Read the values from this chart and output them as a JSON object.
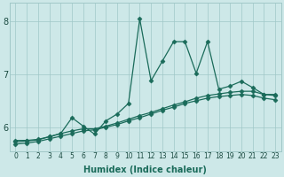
{
  "xlabel": "Humidex (Indice chaleur)",
  "xlim": [
    -0.5,
    23.5
  ],
  "ylim": [
    5.55,
    8.35
  ],
  "yticks": [
    6,
    7,
    8
  ],
  "xticks": [
    0,
    1,
    2,
    3,
    4,
    5,
    6,
    7,
    8,
    9,
    10,
    11,
    12,
    13,
    14,
    15,
    16,
    17,
    18,
    19,
    20,
    21,
    22,
    23
  ],
  "bg_color": "#cde8e8",
  "grid_color": "#a0c8c8",
  "line_color": "#1a6b5a",
  "line1": {
    "x": [
      0,
      1,
      2,
      3,
      4,
      5,
      6,
      7,
      8,
      9,
      10,
      11,
      12,
      13,
      14,
      15,
      16,
      17,
      18,
      19,
      20,
      21,
      22,
      23
    ],
    "y": [
      5.75,
      5.75,
      5.77,
      5.82,
      5.88,
      6.18,
      6.02,
      5.87,
      6.12,
      6.25,
      6.45,
      8.05,
      6.88,
      7.25,
      7.62,
      7.62,
      7.02,
      7.62,
      6.72,
      6.78,
      6.87,
      6.75,
      6.62,
      6.62
    ]
  },
  "line2": {
    "x": [
      0,
      1,
      2,
      3,
      4,
      5,
      6,
      7,
      8,
      9,
      10,
      11,
      12,
      13,
      14,
      15,
      16,
      17,
      18,
      19,
      20,
      21,
      22,
      23
    ],
    "y": [
      5.72,
      5.74,
      5.76,
      5.82,
      5.88,
      5.93,
      5.97,
      5.97,
      6.02,
      6.08,
      6.15,
      6.22,
      6.28,
      6.35,
      6.42,
      6.48,
      6.55,
      6.6,
      6.63,
      6.66,
      6.68,
      6.68,
      6.62,
      6.6
    ]
  },
  "line3": {
    "x": [
      0,
      1,
      2,
      3,
      4,
      5,
      6,
      7,
      8,
      9,
      10,
      11,
      12,
      13,
      14,
      15,
      16,
      17,
      18,
      19,
      20,
      21,
      22,
      23
    ],
    "y": [
      5.68,
      5.7,
      5.73,
      5.78,
      5.83,
      5.88,
      5.93,
      5.95,
      6.0,
      6.05,
      6.12,
      6.18,
      6.25,
      6.32,
      6.38,
      6.45,
      6.5,
      6.55,
      6.58,
      6.6,
      6.62,
      6.6,
      6.55,
      6.52
    ]
  },
  "marker": "D",
  "markersize": 2.5,
  "linewidth": 0.9
}
